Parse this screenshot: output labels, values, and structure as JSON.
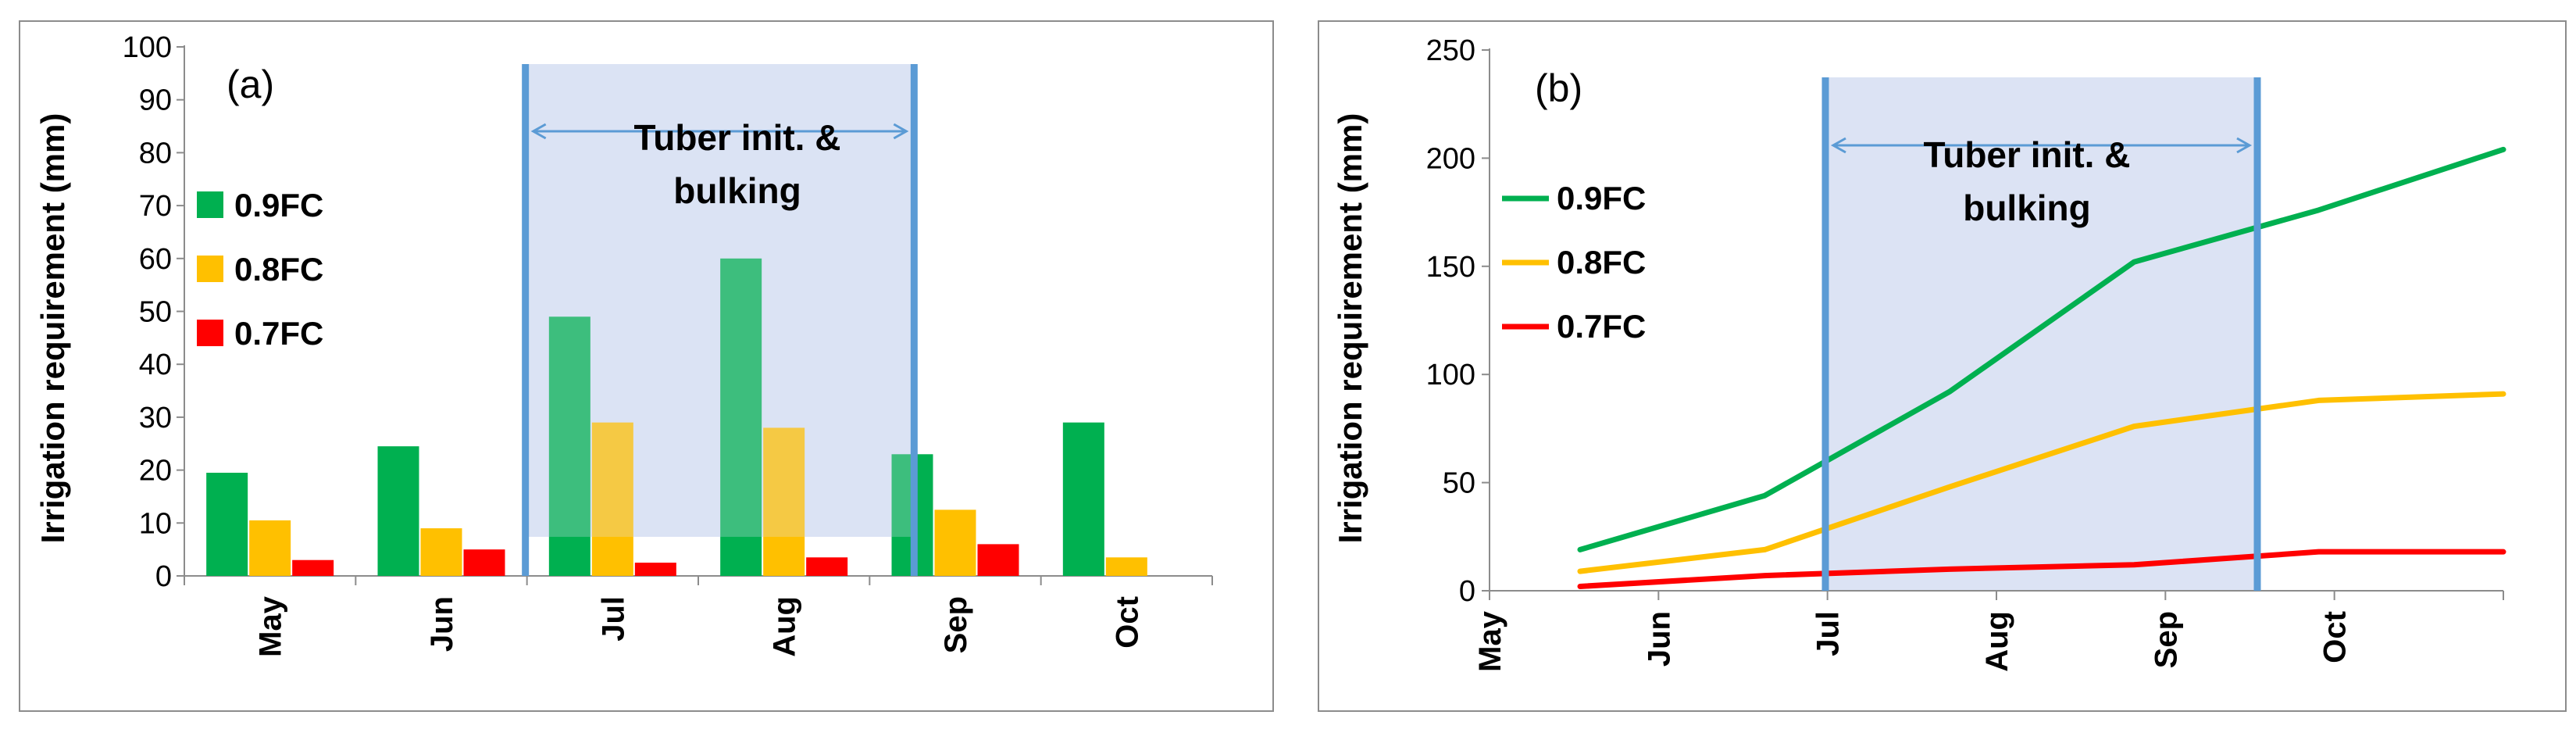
{
  "chart_data": [
    {
      "type": "bar",
      "panel_label": "(a)",
      "ylabel": "Irrigation requirement (mm)",
      "xlabel": "",
      "ylim": [
        0,
        100
      ],
      "yticks": [
        "0",
        "10",
        "20",
        "30",
        "40",
        "50",
        "60",
        "70",
        "80",
        "90",
        "100"
      ],
      "categories": [
        "May",
        "Jun",
        "Jul",
        "Aug",
        "Sep",
        "Oct"
      ],
      "series": [
        {
          "name": "0.9FC",
          "color": "#00B050",
          "values": [
            19.5,
            24.5,
            49,
            60,
            23,
            29
          ]
        },
        {
          "name": "0.8FC",
          "color": "#FFC000",
          "values": [
            10.5,
            9,
            29,
            28,
            12.5,
            3.5
          ]
        },
        {
          "name": "0.7FC",
          "color": "#FF0000",
          "values": [
            3,
            5,
            2.5,
            3.5,
            6,
            0
          ]
        }
      ],
      "phase_label_line1": "Tuber init. &",
      "phase_label_line2": "bulking",
      "phase_color": "#DCE3F4",
      "phase_line_color": "#5B9BD5"
    },
    {
      "type": "line",
      "panel_label": "(b)",
      "ylabel": "Irrigation requirement (mm)",
      "xlabel": "",
      "ylim": [
        0,
        250
      ],
      "yticks": [
        "0",
        "50",
        "100",
        "150",
        "200",
        "250"
      ],
      "categories": [
        "May",
        "Jun",
        "Jul",
        "Aug",
        "Sep",
        "Oct"
      ],
      "series": [
        {
          "name": "0.9FC",
          "color": "#00B050",
          "values": [
            19,
            44,
            92,
            152,
            176,
            204
          ]
        },
        {
          "name": "0.8FC",
          "color": "#FFC000",
          "values": [
            9,
            19,
            48,
            76,
            88,
            91
          ]
        },
        {
          "name": "0.7FC",
          "color": "#FF0000",
          "values": [
            2,
            7,
            10,
            12,
            18,
            18
          ]
        }
      ],
      "phase_label_line1": "Tuber init. &",
      "phase_label_line2": "bulking",
      "phase_color": "#DCE3F4",
      "phase_line_color": "#5B9BD5"
    }
  ]
}
